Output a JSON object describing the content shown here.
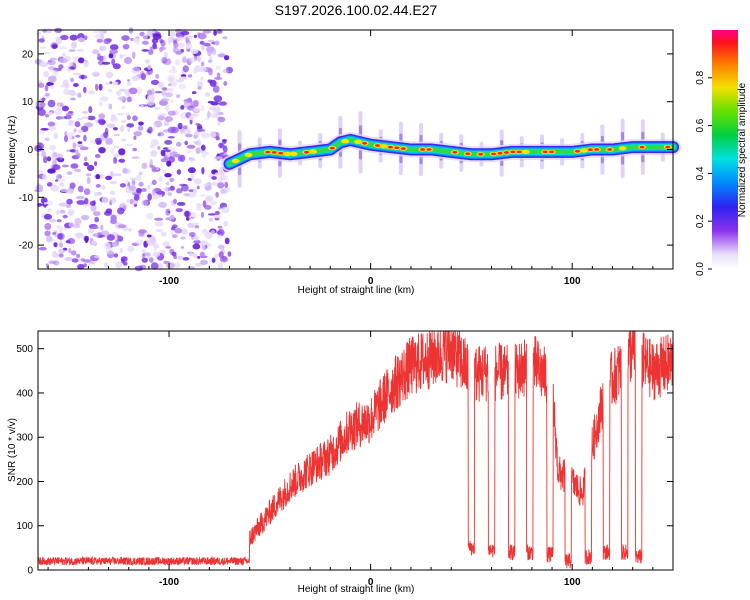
{
  "figure_title": "S197.2026.100.02.44.E27",
  "chart_data": [
    {
      "type": "heatmap",
      "title": "S197.2026.100.02.44.E27",
      "xlabel": "Height of straight line (km)",
      "ylabel": "Frequency (Hz)",
      "xlim": [
        -165,
        150
      ],
      "ylim": [
        -25,
        25
      ],
      "xticks": [
        -100,
        0,
        100
      ],
      "yticks": [
        -20,
        -10,
        0,
        10,
        20
      ],
      "noise_region_x": [
        -165,
        -70
      ],
      "signal_start_x": -70,
      "ridge": {
        "x": [
          -70,
          -65,
          -60,
          -50,
          -40,
          -30,
          -20,
          -15,
          -10,
          0,
          10,
          20,
          30,
          40,
          50,
          60,
          70,
          80,
          90,
          100,
          110,
          120,
          130,
          140,
          150
        ],
        "freq": [
          -3,
          -2,
          -1,
          -0.5,
          -1,
          -0.5,
          0,
          1.5,
          2,
          1,
          0.5,
          0,
          0,
          -0.5,
          -1,
          -1,
          -0.5,
          -0.5,
          -0.5,
          -0.5,
          0,
          0,
          0.5,
          0.5,
          0.5
        ]
      },
      "colorbar": {
        "label": "Normalized spectral amplitude",
        "range": [
          0,
          1
        ],
        "ticks": [
          "0.0",
          "0.2",
          "0.4",
          "0.6",
          "0.8"
        ],
        "tick_values": [
          0,
          0.2,
          0.4,
          0.6,
          0.8
        ]
      }
    },
    {
      "type": "line",
      "xlabel": "Height of straight line (km)",
      "ylabel": "SNR (10 * v/v)",
      "xlim": [
        -165,
        150
      ],
      "ylim": [
        0,
        540
      ],
      "xticks": [
        -100,
        0,
        100
      ],
      "yticks": [
        0,
        100,
        200,
        300,
        400,
        500
      ],
      "series_color": "#ee3333",
      "series": [
        {
          "name": "SNR",
          "x": [
            -165,
            -60,
            -60,
            -50,
            -40,
            -30,
            -20,
            -10,
            0,
            10,
            20,
            30,
            40,
            45,
            50,
            60,
            70,
            80,
            90,
            93,
            100,
            105,
            110,
            115,
            118,
            125,
            130,
            135,
            140,
            150
          ],
          "y": [
            20,
            20,
            70,
            130,
            190,
            230,
            260,
            320,
            340,
            410,
            460,
            480,
            500,
            470,
            440,
            450,
            440,
            470,
            420,
            220,
            200,
            170,
            280,
            380,
            420,
            460,
            500,
            470,
            450,
            470
          ]
        }
      ],
      "dropouts": [
        {
          "x": 50,
          "y": 50
        },
        {
          "x": 60,
          "y": 45
        },
        {
          "x": 70,
          "y": 40
        },
        {
          "x": 79,
          "y": 40
        },
        {
          "x": 89,
          "y": 35
        },
        {
          "x": 98,
          "y": 20
        },
        {
          "x": 108,
          "y": 30
        },
        {
          "x": 117,
          "y": 40
        },
        {
          "x": 126,
          "y": 40
        },
        {
          "x": 133,
          "y": 30
        }
      ]
    }
  ]
}
